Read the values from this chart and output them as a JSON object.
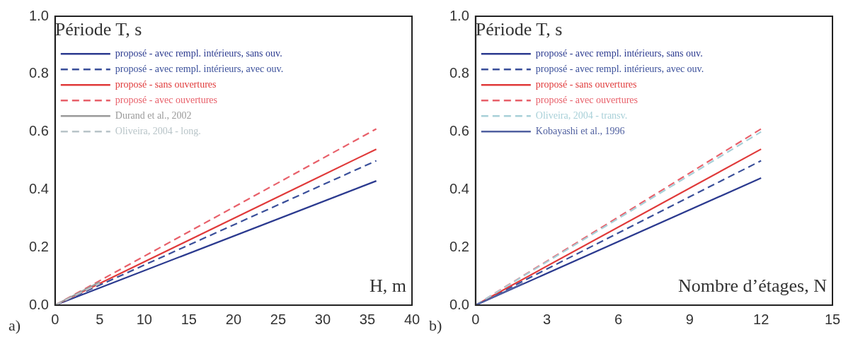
{
  "chart_data": [
    {
      "type": "line",
      "ylabel": "Période T, s",
      "xlabel": "H, m",
      "annotations": [
        "a)"
      ],
      "legend": "top left",
      "grid": false,
      "xlim": [
        0,
        40
      ],
      "xticks": [
        0,
        5,
        10,
        15,
        20,
        25,
        30,
        35,
        40
      ],
      "ylim": [
        0,
        1
      ],
      "yticks": [
        {
          "value": 0,
          "label": "0.0"
        },
        {
          "value": 0.2,
          "label": "0.2"
        },
        {
          "value": 0.4,
          "label": "0.4"
        },
        {
          "value": 0.6,
          "label": "0.6"
        },
        {
          "value": 0.8,
          "label": "0.8"
        },
        {
          "value": 1,
          "label": "1.0"
        }
      ],
      "series": [
        {
          "name": "proposé - avec rempl. intérieurs, sans ouv.",
          "color": "#2b3a8f",
          "line_style": "solid",
          "x": [
            0,
            36
          ],
          "values": [
            0,
            0.43
          ]
        },
        {
          "name": "proposé - avec rempl. intérieurs, avec ouv.",
          "color": "#3a4f9a",
          "line_style": "dashed",
          "x": [
            0,
            36
          ],
          "values": [
            0,
            0.5
          ]
        },
        {
          "name": "proposé - sans ouvertures",
          "color": "#e03a3a",
          "line_style": "solid",
          "x": [
            0,
            36
          ],
          "values": [
            0,
            0.54
          ]
        },
        {
          "name": "proposé - avec ouvertures",
          "color": "#e8606a",
          "line_style": "dashed",
          "x": [
            0,
            36
          ],
          "values": [
            0,
            0.61
          ]
        },
        {
          "name": "Durand et al., 2002",
          "color": "#9a9a9a",
          "line_style": "solid",
          "x": [
            0,
            5
          ],
          "values": [
            0,
            0.08
          ]
        },
        {
          "name": "Oliveira, 2004 - long.",
          "color": "#b8c4c8",
          "line_style": "dashed",
          "x": [
            0,
            5
          ],
          "values": [
            0,
            0.075
          ]
        }
      ]
    },
    {
      "type": "line",
      "ylabel": "Période T, s",
      "xlabel": "Nombre d’étages, N",
      "annotations": [
        "b)"
      ],
      "legend": "top left",
      "grid": false,
      "xlim": [
        0,
        15
      ],
      "xticks": [
        0,
        3,
        6,
        9,
        12,
        15
      ],
      "ylim": [
        0,
        1
      ],
      "yticks": [
        {
          "value": 0,
          "label": "0.0"
        },
        {
          "value": 0.2,
          "label": "0.2"
        },
        {
          "value": 0.4,
          "label": "0.4"
        },
        {
          "value": 0.6,
          "label": "0.6"
        },
        {
          "value": 0.8,
          "label": "0.8"
        },
        {
          "value": 1,
          "label": "1.0"
        }
      ],
      "series": [
        {
          "name": "proposé - avec rempl. intérieurs, sans ouv.",
          "color": "#2b3a8f",
          "line_style": "solid",
          "x": [
            0,
            12
          ],
          "values": [
            0,
            0.44
          ]
        },
        {
          "name": "proposé - avec rempl. intérieurs, avec ouv.",
          "color": "#3a4f9a",
          "line_style": "dashed",
          "x": [
            0,
            12
          ],
          "values": [
            0,
            0.5
          ]
        },
        {
          "name": "proposé - sans ouvertures",
          "color": "#e03a3a",
          "line_style": "solid",
          "x": [
            0,
            12
          ],
          "values": [
            0,
            0.54
          ]
        },
        {
          "name": "proposé - avec ouvertures",
          "color": "#e8606a",
          "line_style": "dashed",
          "x": [
            0,
            12
          ],
          "values": [
            0,
            0.61
          ]
        },
        {
          "name": "Oliveira, 2004 - transv.",
          "color": "#a8d0d8",
          "line_style": "dashed",
          "x": [
            0,
            12
          ],
          "values": [
            0,
            0.6
          ]
        },
        {
          "name": "Kobayashi et al., 1996",
          "color": "#5060a0",
          "line_style": "solid",
          "x": [
            0,
            2
          ],
          "values": [
            0,
            0.075
          ]
        }
      ]
    }
  ]
}
